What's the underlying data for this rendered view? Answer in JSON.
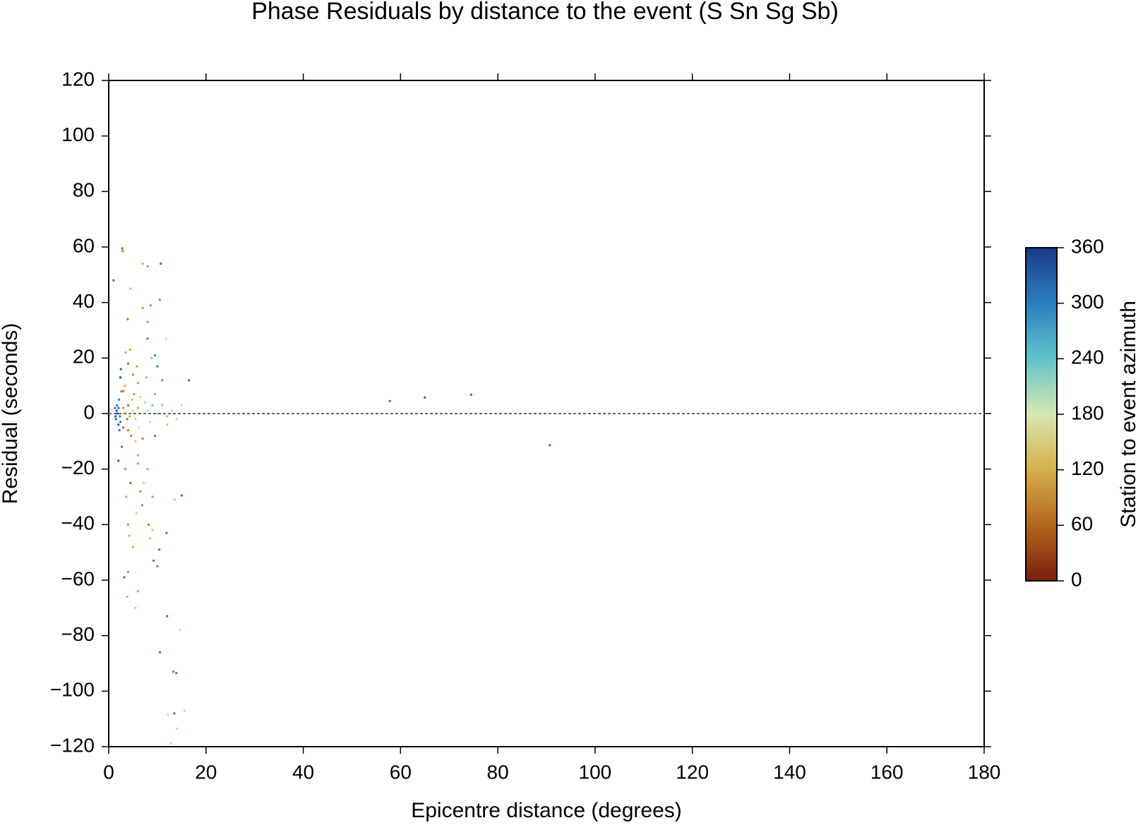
{
  "chart_data": {
    "type": "scatter",
    "title": "Phase Residuals by distance to the event (S Sn Sg Sb)",
    "x_label": "Epicentre distance (degrees)",
    "y_label": "Residual (seconds)",
    "xlim": [
      0,
      180
    ],
    "xticks": [
      0,
      20,
      40,
      60,
      80,
      100,
      120,
      140,
      160,
      180
    ],
    "ylim": [
      -120,
      120
    ],
    "yticks": [
      {
        "value": -120,
        "label": "−120"
      },
      {
        "value": -100,
        "label": "−100"
      },
      {
        "value": -80,
        "label": "−80"
      },
      {
        "value": -60,
        "label": "−60"
      },
      {
        "value": -40,
        "label": "−40"
      },
      {
        "value": -20,
        "label": "−20"
      },
      0,
      20,
      40,
      60,
      80,
      100,
      120
    ],
    "reference_line": 0,
    "colorbar": {
      "label": "Station to event azimuth",
      "lim": [
        0,
        360
      ],
      "ticks": [
        0,
        60,
        120,
        180,
        240,
        300,
        360
      ],
      "colors": [
        "#7a1e0a",
        "#b5651d",
        "#d4b04a",
        "#d8e8b0",
        "#5fc4cc",
        "#2a7fc0",
        "#1a3a8a"
      ]
    },
    "x": [
      2.8,
      2.9,
      1,
      7,
      8,
      10.7,
      10.5,
      8.6,
      4.5,
      3.9,
      7,
      8,
      8,
      11.8,
      9.5,
      8.8,
      10,
      11,
      16.5,
      6,
      5,
      3.5,
      4,
      2.5,
      2.4,
      3,
      6.5,
      9.5,
      57.8,
      65,
      74.5,
      90.7,
      15,
      13.5,
      11.9,
      9,
      8.2,
      10.4,
      10,
      9.2,
      3.2,
      4,
      3.8,
      5.5,
      12,
      14.6,
      10.5,
      13.3,
      13.9,
      13.5,
      12.2,
      14,
      12.8,
      15.6,
      6,
      5,
      4,
      5.7,
      6.9,
      8,
      2,
      2.7,
      3.4,
      4.5,
      6,
      7,
      5.5,
      4,
      3,
      2,
      1.5,
      1.6,
      1.7,
      2.1,
      2.4,
      3,
      3.5,
      4,
      4.3,
      5,
      5.5,
      6,
      7,
      8,
      9,
      10,
      12,
      13,
      14,
      15,
      2.2,
      1.8,
      2.6,
      3.3,
      4.8,
      6.2,
      7.5,
      8.5,
      11,
      12,
      1.3,
      1.4,
      2,
      2.3,
      3.8,
      4.6,
      5.2,
      3.6,
      4.2,
      6.5,
      7.2,
      8.5,
      9,
      6,
      7.8,
      5.8,
      4.4,
      9.5
    ],
    "values": [
      59.5,
      58.5,
      48,
      54,
      53,
      54,
      41,
      39,
      45,
      34,
      38,
      33,
      27,
      27,
      21,
      20,
      17,
      12,
      12,
      11,
      14,
      22,
      18,
      16,
      13,
      8,
      6,
      7,
      4.5,
      5.8,
      6.8,
      -11.4,
      -29.5,
      -31,
      -43,
      -42,
      -40,
      -49,
      -55,
      -53,
      -59,
      -57,
      -66,
      -70,
      -73,
      -78,
      -86,
      -93,
      -93.5,
      -108,
      -108.5,
      -113.5,
      -118.8,
      -107,
      -64,
      -48,
      -40,
      -36,
      -33,
      -20,
      -17,
      -12,
      -20,
      -25,
      -15,
      -9,
      -10,
      -6,
      -5,
      -4,
      -2,
      1,
      3,
      5,
      -3,
      2,
      0,
      3,
      -1,
      1,
      -2,
      2,
      0,
      1,
      3,
      0,
      -1,
      1,
      -2,
      3,
      -6,
      0,
      8,
      10,
      5,
      -5,
      4,
      -3,
      3,
      -4,
      2,
      -1,
      2,
      -1,
      -2,
      -8,
      7,
      -30,
      -44,
      -28,
      -25,
      -45,
      -30,
      -18,
      13,
      17,
      23,
      -8
    ],
    "azimuth": [
      60,
      80,
      300,
      130,
      100,
      300,
      270,
      250,
      140,
      70,
      100,
      250,
      60,
      170,
      280,
      230,
      300,
      280,
      300,
      110,
      90,
      120,
      70,
      320,
      330,
      80,
      190,
      230,
      300,
      310,
      320,
      300,
      300,
      150,
      300,
      140,
      80,
      290,
      270,
      60,
      50,
      90,
      130,
      150,
      300,
      170,
      300,
      290,
      300,
      300,
      170,
      170,
      160,
      170,
      110,
      120,
      100,
      200,
      90,
      230,
      320,
      300,
      100,
      60,
      110,
      80,
      150,
      90,
      70,
      330,
      320,
      330,
      310,
      300,
      300,
      100,
      80,
      60,
      120,
      170,
      200,
      110,
      180,
      160,
      240,
      200,
      140,
      150,
      160,
      170,
      300,
      330,
      90,
      120,
      140,
      180,
      200,
      170,
      220,
      150,
      310,
      330,
      320,
      310,
      60,
      80,
      100,
      110,
      130,
      90,
      160,
      150,
      250,
      240,
      130,
      100,
      110,
      280
    ]
  }
}
